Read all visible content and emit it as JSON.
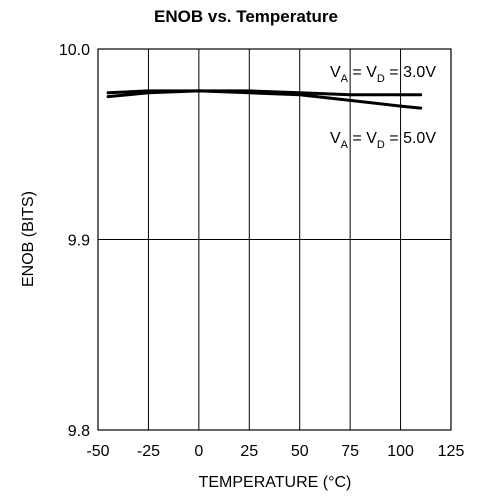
{
  "chart_data": {
    "type": "line",
    "title": "ENOB vs. Temperature",
    "xlabel": "TEMPERATURE (°C)",
    "ylabel": "ENOB (BITS)",
    "xlim": [
      -50,
      125
    ],
    "ylim": [
      9.8,
      10.0
    ],
    "x_ticks": [
      "-50",
      "-25",
      "0",
      "25",
      "50",
      "75",
      "100",
      "125"
    ],
    "y_ticks": [
      "9.8",
      "9.9",
      "10.0"
    ],
    "grid": true,
    "series": [
      {
        "name": "VA = VD = 3.0V",
        "x": [
          -45,
          -25,
          0,
          25,
          50,
          75,
          100,
          110
        ],
        "y": [
          9.977,
          9.978,
          9.978,
          9.978,
          9.977,
          9.976,
          9.976,
          9.976
        ],
        "color": "#000000"
      },
      {
        "name": "VA = VD = 5.0V",
        "x": [
          -45,
          -25,
          0,
          25,
          50,
          75,
          100,
          110
        ],
        "y": [
          9.975,
          9.977,
          9.978,
          9.977,
          9.976,
          9.973,
          9.97,
          9.969
        ],
        "color": "#000000"
      }
    ],
    "annotations": [
      {
        "series": 0,
        "parts": [
          "V",
          "A",
          " = V",
          "D",
          " = 3.0V"
        ]
      },
      {
        "series": 1,
        "parts": [
          "V",
          "A",
          " = V",
          "D",
          " = 5.0V"
        ]
      }
    ]
  }
}
